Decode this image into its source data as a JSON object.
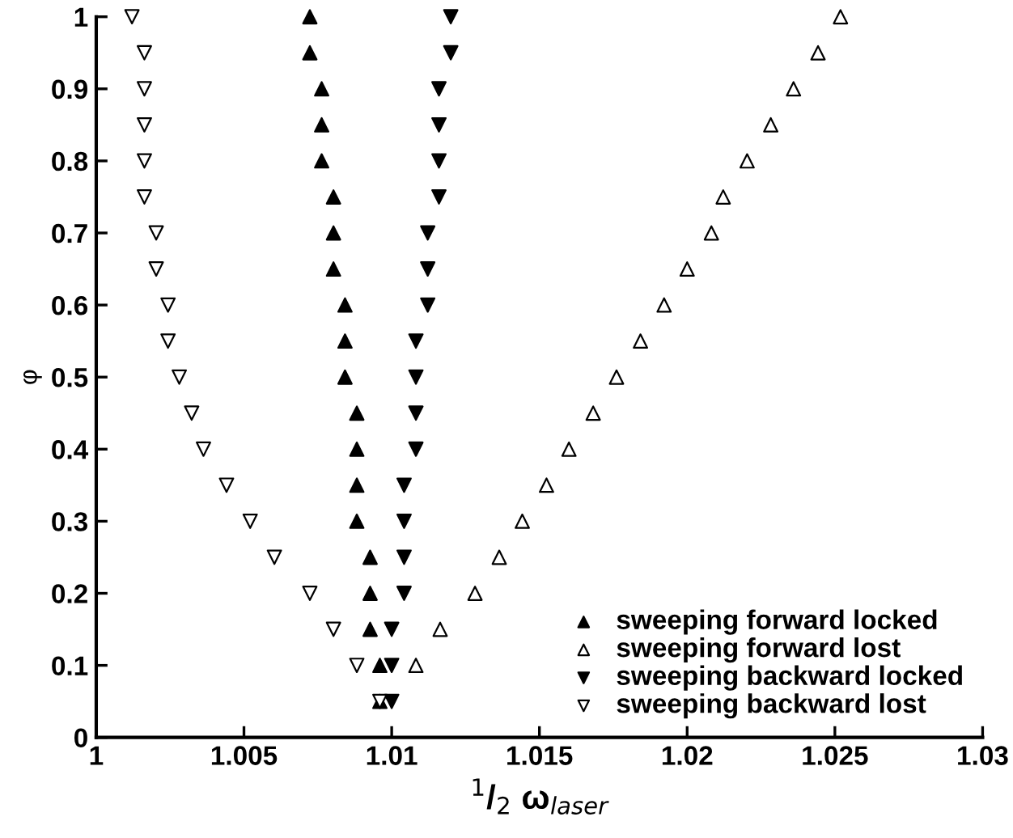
{
  "chart_data": {
    "type": "scatter",
    "xlabel": "$^{1}$/$_{2}$ ω$_{laser}$",
    "ylabel": "φ",
    "xlim": [
      1,
      1.03
    ],
    "xticks": [
      1,
      1.005,
      1.01,
      1.015,
      1.02,
      1.025,
      1.03
    ],
    "ylim": [
      0,
      1
    ],
    "yticks": [
      0,
      0.1,
      0.2,
      0.3,
      0.4,
      0.5,
      0.6,
      0.7,
      0.8,
      0.9,
      1
    ],
    "legend": "bottom right",
    "grid": false,
    "series": [
      {
        "name": "sweeping forward locked",
        "color": "#000000",
        "marker": "triangle",
        "x": [
          1.0096,
          1.0096,
          1.00927,
          1.00927,
          1.00927,
          1.00882,
          1.00882,
          1.00882,
          1.00882,
          1.00842,
          1.00842,
          1.00842,
          1.00803,
          1.00803,
          1.00803,
          1.00763,
          1.00763,
          1.00763,
          1.00723,
          1.00723
        ],
        "values": [
          0.05,
          0.1,
          0.15,
          0.2,
          0.25,
          0.3,
          0.35,
          0.4,
          0.45,
          0.5,
          0.55,
          0.6,
          0.65,
          0.7,
          0.75,
          0.8,
          0.85,
          0.9,
          0.95,
          1
        ]
      },
      {
        "name": "sweeping forward lost",
        "color": "#ffffff",
        "marker": "triangle",
        "x": [
          1.01082,
          1.01164,
          1.01282,
          1.01364,
          1.01442,
          1.01524,
          1.016,
          1.01682,
          1.01761,
          1.01842,
          1.01922,
          1.02,
          1.02082,
          1.02122,
          1.02203,
          1.02283,
          1.0236,
          1.02443,
          1.02519
        ],
        "values": [
          0.1,
          0.15,
          0.2,
          0.25,
          0.3,
          0.35,
          0.4,
          0.45,
          0.5,
          0.55,
          0.6,
          0.65,
          0.7,
          0.75,
          0.8,
          0.85,
          0.9,
          0.95,
          1
        ]
      },
      {
        "name": "sweeping backward locked",
        "color": "#000000",
        "marker": "triangle_down",
        "x": [
          1.01,
          1.01,
          1.01,
          1.01042,
          1.01042,
          1.01042,
          1.01042,
          1.01082,
          1.01082,
          1.01082,
          1.01082,
          1.01122,
          1.01122,
          1.01122,
          1.0116,
          1.0116,
          1.0116,
          1.0116,
          1.012,
          1.012
        ],
        "values": [
          0.05,
          0.1,
          0.15,
          0.2,
          0.25,
          0.3,
          0.35,
          0.4,
          0.45,
          0.5,
          0.55,
          0.6,
          0.65,
          0.7,
          0.75,
          0.8,
          0.85,
          0.9,
          0.95,
          1
        ]
      },
      {
        "name": "sweeping backward lost",
        "color": "#ffffff",
        "marker": "triangle_down",
        "x": [
          1.0096,
          1.00882,
          1.00803,
          1.00723,
          1.00603,
          1.00521,
          1.00441,
          1.00363,
          1.00323,
          1.00281,
          1.00243,
          1.00243,
          1.00203,
          1.00203,
          1.00163,
          1.00163,
          1.00163,
          1.00163,
          1.00163,
          1.00121
        ],
        "values": [
          0.05,
          0.1,
          0.15,
          0.2,
          0.25,
          0.3,
          0.35,
          0.4,
          0.45,
          0.5,
          0.55,
          0.6,
          0.65,
          0.7,
          0.75,
          0.8,
          0.85,
          0.9,
          0.95,
          1
        ]
      }
    ]
  }
}
